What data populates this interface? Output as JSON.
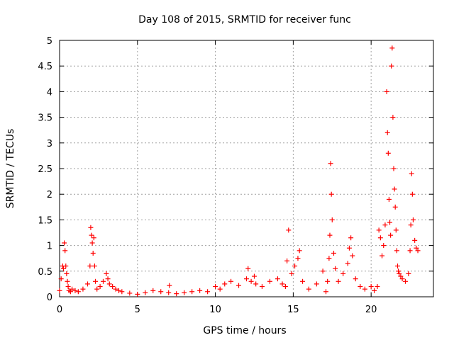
{
  "chart_data": {
    "type": "scatter",
    "title": "Day 108 of 2015, SRMTID for receiver func",
    "xlabel": "GPS time / hours",
    "ylabel": "SRMTID / TECUs",
    "xlim": [
      0,
      24
    ],
    "ylim": [
      0,
      5
    ],
    "xticks": [
      0,
      5,
      10,
      15,
      20
    ],
    "xtick_labels": [
      "0",
      "5",
      "10",
      "15",
      "20"
    ],
    "yticks": [
      0,
      0.5,
      1,
      1.5,
      2,
      2.5,
      3,
      3.5,
      4,
      4.5,
      5
    ],
    "ytick_labels": [
      "0",
      "0.5",
      "1",
      "1.5",
      "2",
      "2.5",
      "3",
      "3.5",
      "4",
      "4.5",
      "5"
    ],
    "grid": true,
    "marker": "+",
    "color": "#ff0000",
    "series": [
      {
        "name": "SRMTID",
        "x": [
          0.0,
          0.1,
          0.2,
          0.25,
          0.3,
          0.35,
          0.4,
          0.45,
          0.5,
          0.55,
          0.6,
          0.7,
          0.8,
          1.0,
          1.2,
          1.5,
          1.8,
          1.95,
          2.0,
          2.05,
          2.1,
          2.15,
          2.2,
          2.25,
          2.3,
          2.4,
          2.6,
          2.8,
          3.0,
          3.1,
          3.2,
          3.4,
          3.6,
          3.8,
          4.0,
          4.5,
          5.0,
          5.5,
          6.0,
          6.5,
          7.0,
          7.05,
          7.5,
          8.0,
          8.5,
          9.0,
          9.5,
          10.0,
          10.3,
          10.6,
          11.0,
          11.5,
          12.0,
          12.1,
          12.3,
          12.5,
          12.6,
          13.0,
          13.5,
          14.0,
          14.3,
          14.5,
          14.6,
          14.7,
          14.9,
          15.1,
          15.3,
          15.4,
          15.6,
          16.0,
          16.5,
          16.9,
          17.1,
          17.2,
          17.3,
          17.35,
          17.4,
          17.45,
          17.5,
          17.6,
          17.7,
          17.9,
          18.2,
          18.5,
          18.6,
          18.7,
          18.8,
          19.0,
          19.3,
          19.6,
          20.0,
          20.2,
          20.4,
          20.5,
          20.6,
          20.7,
          20.8,
          20.9,
          21.0,
          21.05,
          21.1,
          21.15,
          21.2,
          21.25,
          21.3,
          21.35,
          21.4,
          21.45,
          21.5,
          21.55,
          21.6,
          21.65,
          21.7,
          21.75,
          21.8,
          21.9,
          22.0,
          22.2,
          22.4,
          22.5,
          22.55,
          22.6,
          22.65,
          22.7,
          22.8,
          22.9,
          23.0
        ],
        "values": [
          0.12,
          0.35,
          0.6,
          0.55,
          1.05,
          0.9,
          0.6,
          0.45,
          0.3,
          0.2,
          0.12,
          0.1,
          0.15,
          0.12,
          0.1,
          0.15,
          0.25,
          0.6,
          1.35,
          1.2,
          1.05,
          0.85,
          1.15,
          0.6,
          0.3,
          0.15,
          0.2,
          0.3,
          0.45,
          0.35,
          0.25,
          0.2,
          0.15,
          0.12,
          0.1,
          0.07,
          0.05,
          0.08,
          0.12,
          0.1,
          0.08,
          0.22,
          0.06,
          0.08,
          0.1,
          0.12,
          0.1,
          0.2,
          0.15,
          0.25,
          0.3,
          0.22,
          0.35,
          0.55,
          0.3,
          0.4,
          0.25,
          0.2,
          0.3,
          0.35,
          0.25,
          0.2,
          0.7,
          1.3,
          0.45,
          0.6,
          0.75,
          0.9,
          0.3,
          0.15,
          0.25,
          0.5,
          0.1,
          0.3,
          0.75,
          1.2,
          2.6,
          2.0,
          1.5,
          0.85,
          0.55,
          0.3,
          0.45,
          0.65,
          0.95,
          1.15,
          0.8,
          0.35,
          0.2,
          0.15,
          0.2,
          0.12,
          0.2,
          1.3,
          1.15,
          0.8,
          1.0,
          1.4,
          4.0,
          3.2,
          2.8,
          1.9,
          1.45,
          1.2,
          4.5,
          4.85,
          3.5,
          2.5,
          2.1,
          1.75,
          1.3,
          0.9,
          0.6,
          0.5,
          0.45,
          0.4,
          0.35,
          0.3,
          0.45,
          0.9,
          1.4,
          2.4,
          2.0,
          1.5,
          1.1,
          0.95,
          0.9
        ]
      }
    ]
  }
}
